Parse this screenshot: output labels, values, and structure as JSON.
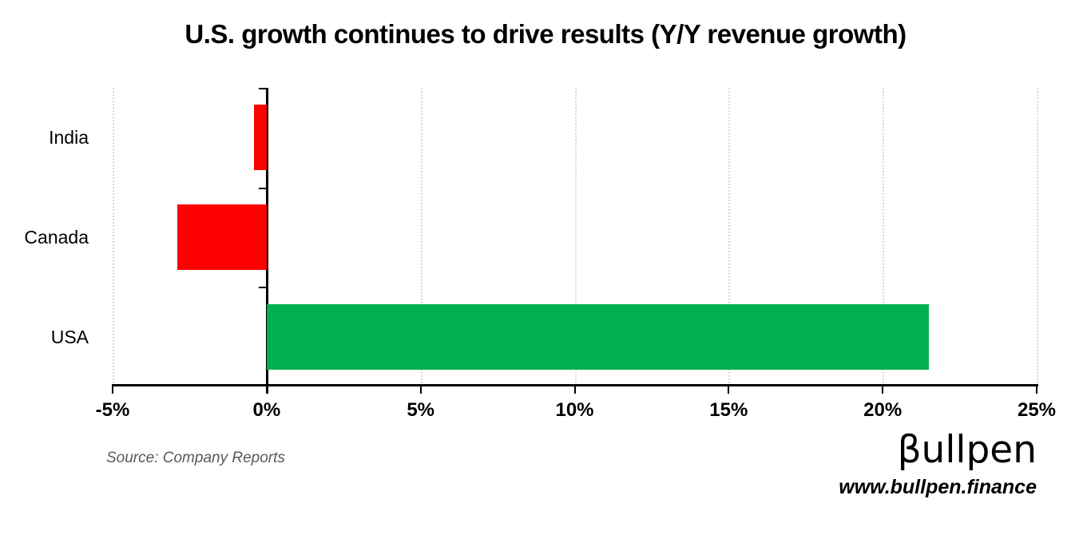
{
  "title": "U.S. growth continues to drive results (Y/Y revenue growth)",
  "source_note": "Source: Company Reports",
  "logo": {
    "text": "βullpen",
    "url": "www.bullpen.finance"
  },
  "colors": {
    "positive_bar": "#00B050",
    "negative_bar": "#FF0000",
    "axis": "#000000",
    "gridline": "#D9D9D9",
    "source_text": "#595959",
    "background": "#FFFFFF"
  },
  "chart_data": {
    "type": "bar",
    "orientation": "horizontal",
    "title": "U.S. growth continues to drive results (Y/Y revenue growth)",
    "categories": [
      "India",
      "Canada",
      "USA"
    ],
    "values": [
      -0.4,
      -2.9,
      21.5
    ],
    "unit": "%",
    "bar_colors": [
      "#FF0000",
      "#FF0000",
      "#00B050"
    ],
    "xlabel": "",
    "ylabel": "",
    "xlim": [
      -5,
      25
    ],
    "x_tick_values": [
      -5,
      0,
      5,
      10,
      15,
      20,
      25
    ],
    "x_tick_labels": [
      "-5%",
      "0%",
      "5%",
      "10%",
      "15%",
      "20%",
      "25%"
    ],
    "grid": "vertical-dotted",
    "legend": "none",
    "zero_axis_line": true
  }
}
